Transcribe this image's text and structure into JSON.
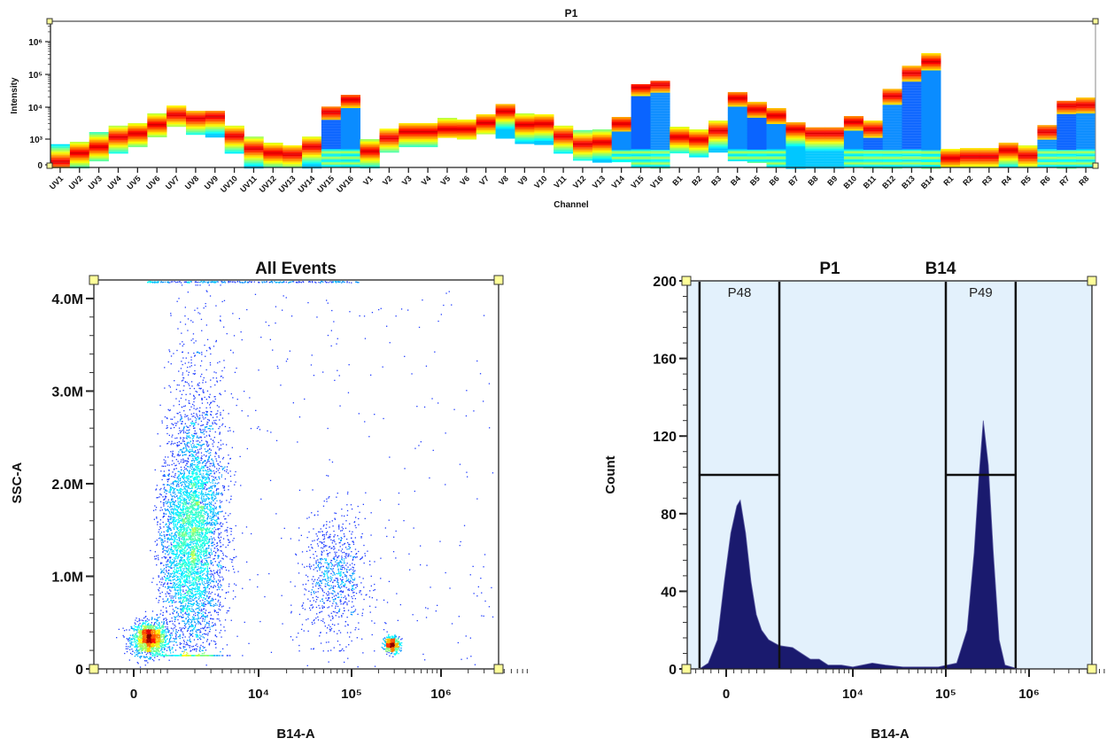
{
  "chart_data": [
    {
      "type": "heatmap",
      "title": "P1",
      "xlabel": "Channel",
      "ylabel": "Intensity",
      "y_scale": "log",
      "y_tick_labels": [
        "0",
        "10³",
        "10⁴",
        "10⁵",
        "10⁶"
      ],
      "colormap": "jet (blue low density → red high density)",
      "channels": [
        "UV1",
        "UV2",
        "UV3",
        "UV4",
        "UV5",
        "UV6",
        "UV7",
        "UV8",
        "UV9",
        "UV10",
        "UV11",
        "UV12",
        "UV13",
        "UV14",
        "UV15",
        "UV16",
        "V1",
        "V2",
        "V3",
        "V4",
        "V5",
        "V6",
        "V7",
        "V8",
        "V9",
        "V10",
        "V11",
        "V12",
        "V13",
        "V14",
        "V15",
        "V16",
        "B1",
        "B2",
        "B3",
        "B4",
        "B5",
        "B6",
        "B7",
        "B8",
        "B9",
        "B10",
        "B11",
        "B12",
        "B13",
        "B14",
        "R1",
        "R2",
        "R3",
        "R4",
        "R5",
        "R6",
        "R7",
        "R8"
      ],
      "max_intensity": [
        700,
        830,
        1650,
        2600,
        3100,
        6200,
        10800,
        7400,
        7400,
        2600,
        1200,
        780,
        640,
        1200,
        10000,
        23000,
        1000,
        2100,
        3100,
        3100,
        4500,
        4000,
        5800,
        12000,
        6200,
        5800,
        2600,
        1900,
        2000,
        4800,
        49000,
        62000,
        2400,
        2000,
        3700,
        28000,
        14000,
        9000,
        3300,
        2300,
        2300,
        5100,
        3700,
        35000,
        180000,
        440000,
        500,
        530,
        530,
        780,
        640,
        2700,
        15000,
        19000
      ],
      "min_intensity": [
        0,
        0,
        220,
        390,
        600,
        1200,
        2400,
        1450,
        1200,
        390,
        0,
        0,
        0,
        0,
        0,
        0,
        0,
        410,
        600,
        600,
        1130,
        1000,
        1450,
        1060,
        730,
        730,
        390,
        220,
        200,
        210,
        0,
        0,
        390,
        290,
        410,
        220,
        200,
        0,
        0,
        0,
        0,
        0,
        0,
        0,
        0,
        0,
        0,
        0,
        0,
        0,
        0,
        0,
        0,
        0
      ],
      "peak_intensity": [
        210,
        390,
        600,
        1200,
        1550,
        2900,
        5800,
        4500,
        5100,
        1290,
        530,
        390,
        350,
        600,
        7000,
        17000,
        440,
        1130,
        1760,
        1760,
        2100,
        2100,
        3300,
        7400,
        2900,
        3100,
        1290,
        730,
        830,
        3100,
        41000,
        49000,
        1200,
        1000,
        1870,
        19000,
        8400,
        5500,
        2100,
        1550,
        1550,
        3500,
        2100,
        22000,
        110000,
        250000,
        270,
        300,
        300,
        470,
        320,
        1760,
        11000,
        11500
      ],
      "blue_body": [
        false,
        false,
        false,
        false,
        false,
        false,
        false,
        false,
        false,
        false,
        false,
        false,
        false,
        false,
        true,
        true,
        false,
        false,
        false,
        false,
        false,
        false,
        false,
        false,
        false,
        false,
        false,
        false,
        false,
        true,
        true,
        true,
        false,
        false,
        false,
        true,
        true,
        true,
        false,
        false,
        false,
        true,
        true,
        true,
        true,
        true,
        false,
        false,
        false,
        false,
        false,
        true,
        true,
        true
      ]
    },
    {
      "type": "scatter",
      "title": "All Events",
      "xlabel": "B14-A",
      "ylabel": "SSC-A",
      "x_scale": "biexponential",
      "x_tick_labels": [
        "0",
        "10⁴",
        "10⁵",
        "10⁶"
      ],
      "y_tick_labels": [
        "0",
        "1.0M",
        "2.0M",
        "3.0M",
        "4.0M"
      ],
      "xlim": [
        -1200,
        4300000
      ],
      "ylim": [
        0,
        4200000
      ],
      "colormap": "density (blue → cyan → green → red)",
      "populations": [
        {
          "center_b14": 450,
          "center_ssc": 330000,
          "events": 1500
        },
        {
          "center_b14": 1800,
          "center_ssc": 1450000,
          "events": 5200
        },
        {
          "center_b14": 65000,
          "center_ssc": 1000000,
          "events": 800
        },
        {
          "center_b14": 280000,
          "center_ssc": 270000,
          "events": 450
        },
        {
          "center_b14": "scattered",
          "center_ssc": "scattered",
          "events": 350
        }
      ]
    },
    {
      "type": "area",
      "title": "P1",
      "subtitle": "B14",
      "xlabel": "B14-A",
      "ylabel": "Count",
      "x_scale": "biexponential",
      "x_tick_labels": [
        "0",
        "10⁴",
        "10⁵",
        "10⁶"
      ],
      "y_tick_labels": [
        "0",
        "40",
        "80",
        "120",
        "160",
        "200"
      ],
      "ylim": [
        0,
        200
      ],
      "xlim": [
        -1050,
        5700000
      ],
      "fill_color": "#1a1a6e",
      "background_color": "#e3f1fc",
      "points": [
        [
          -1050,
          0
        ],
        [
          -700,
          0
        ],
        [
          -470,
          3
        ],
        [
          -230,
          15
        ],
        [
          -50,
          45
        ],
        [
          120,
          70
        ],
        [
          280,
          84
        ],
        [
          370,
          87
        ],
        [
          510,
          70
        ],
        [
          650,
          45
        ],
        [
          790,
          28
        ],
        [
          930,
          20
        ],
        [
          1120,
          15
        ],
        [
          1480,
          12
        ],
        [
          2090,
          11
        ],
        [
          2630,
          8
        ],
        [
          3310,
          5
        ],
        [
          4170,
          5
        ],
        [
          5250,
          2
        ],
        [
          7410,
          2
        ],
        [
          10000,
          1
        ],
        [
          16200,
          3
        ],
        [
          22400,
          2
        ],
        [
          34700,
          1
        ],
        [
          83000,
          1
        ],
        [
          135000,
          3
        ],
        [
          180000,
          20
        ],
        [
          219000,
          60
        ],
        [
          251000,
          100
        ],
        [
          282000,
          128
        ],
        [
          324000,
          105
        ],
        [
          372000,
          60
        ],
        [
          437000,
          15
        ],
        [
          513000,
          2
        ],
        [
          741000,
          0
        ],
        [
          5700000,
          0
        ]
      ],
      "gates": [
        {
          "name": "P48",
          "range": [
            -700,
            1480
          ],
          "marker_count": 100
        },
        {
          "name": "P49",
          "range": [
            100000,
            690000
          ],
          "marker_count": 100
        }
      ]
    }
  ]
}
